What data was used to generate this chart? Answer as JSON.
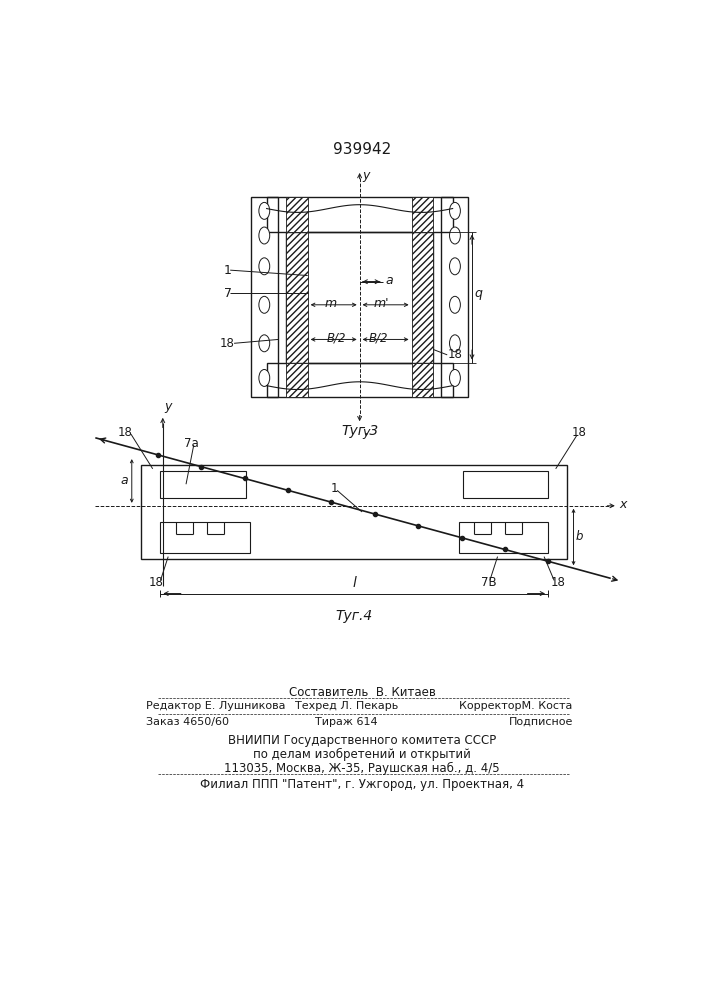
{
  "title": "939942",
  "line_color": "#1a1a1a",
  "fig3_caption": "Τуг.3",
  "fig4_caption": "Τуг.4",
  "footer": {
    "line1": "Составитель  В. Китаев",
    "line2_left": "Редактор Е. Лушникова",
    "line2_mid": "Техред Л. Пекарь",
    "line2_right": "КорректорМ. Коста",
    "line3_left": "Заказ 4650/60",
    "line3_mid": "Тираж 614",
    "line3_right": "Подписное",
    "line4": "ВНИИПИ Государственного комитета СССР",
    "line5": "по делам изобретений и открытий",
    "line6": "113035, Москва, Ж-35, Раушская наб., д. 4/5",
    "line7": "Филиал ППП \"Патент\", г. Ужгород, ул. Проектная, 4"
  }
}
